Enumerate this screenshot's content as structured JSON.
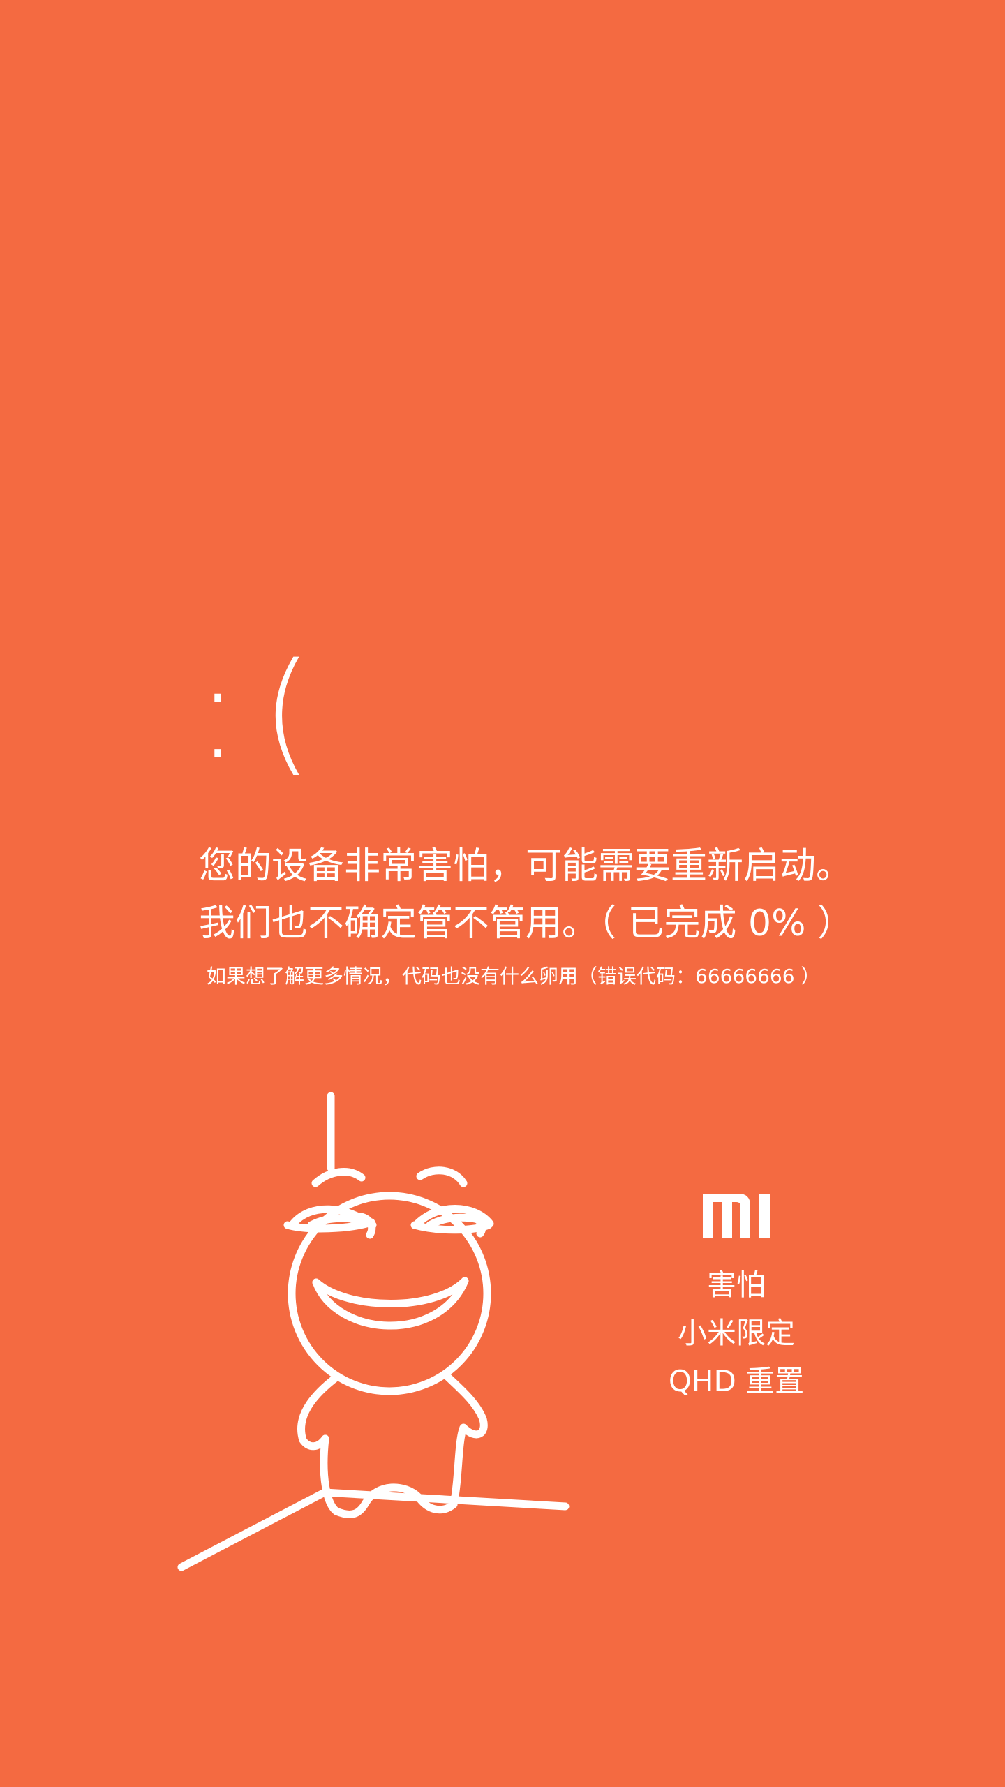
{
  "screen": {
    "background_color": "#F46A41",
    "foreground_color": "#FFFFFF"
  },
  "error": {
    "emoticon": ":(",
    "message_line_1": "您的设备非常害怕，可能需要重新启动。",
    "message_line_2": "我们也不确定管不管用。（ 已完成 0% ）",
    "detail_line": "如果想了解更多情况，代码也没有什么卵用（错误代码：66666666 ）"
  },
  "illustration": {
    "icon": "hanging-cartoon-face-icon"
  },
  "brand": {
    "logo_icon": "mi-logo-icon",
    "line_1": "害怕",
    "line_2": "小米限定",
    "line_3": "QHD 重置"
  }
}
